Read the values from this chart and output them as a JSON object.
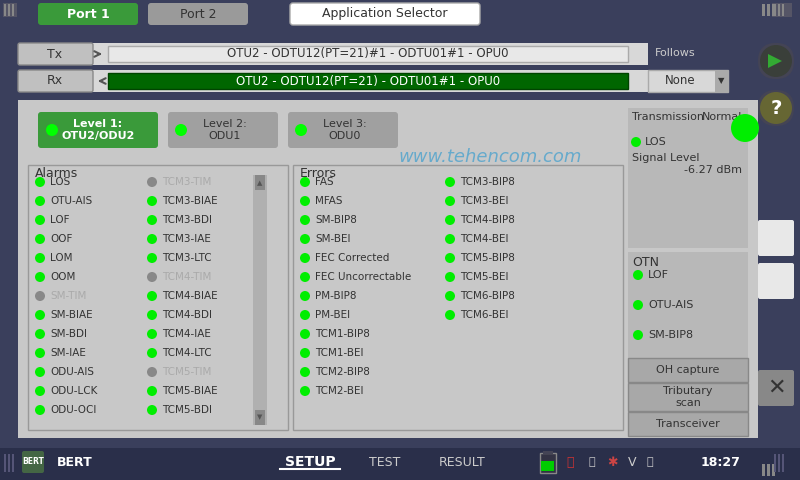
{
  "bg_color": "#3a3f5c",
  "panel_bg": "#c8c8c8",
  "panel_bg2": "#b0b0b0",
  "dark_bg": "#2a2f4a",
  "title_bar_bg": "#3a3f5c",
  "green_btn": "#3a9a3a",
  "gray_btn": "#888888",
  "white_btn": "#e8e8e8",
  "port1_label": "Port 1",
  "port2_label": "Port 2",
  "app_selector": "Application Selector",
  "tx_label": "Tx",
  "rx_label": "Rx",
  "tx_text": "OTU2 - ODTU12(PT=21)#1 - ODTU01#1 - OPU0",
  "rx_text": "OTU2 - ODTU12(PT=21) - ODTU01#1 - OPU0",
  "follows_label": "Follows",
  "none_label": "None",
  "level1_label": "Level 1:\nOTU2/ODU2",
  "level2_label": "Level 2:\nODU1",
  "level3_label": "Level 3:\nODU0",
  "watermark": "www.tehencom.com",
  "alarms_title": "Alarms",
  "errors_title": "Errors",
  "alarms_col1": [
    "LOS",
    "OTU-AIS",
    "LOF",
    "OOF",
    "LOM",
    "OOM",
    "SM-TIM",
    "SM-BIAE",
    "SM-BDI",
    "SM-IAE",
    "ODU-AIS",
    "ODU-LCK",
    "ODU-OCI"
  ],
  "alarms_col1_green": [
    true,
    true,
    true,
    true,
    true,
    true,
    false,
    true,
    true,
    true,
    true,
    true,
    true
  ],
  "alarms_col2": [
    "TCM3-TIM",
    "TCM3-BIAE",
    "TCM3-BDI",
    "TCM3-IAE",
    "TCM3-LTC",
    "TCM4-TIM",
    "TCM4-BIAE",
    "TCM4-BDI",
    "TCM4-IAE",
    "TCM4-LTC",
    "TCM5-TIM",
    "TCM5-BIAE",
    "TCM5-BDI"
  ],
  "alarms_col2_green": [
    false,
    true,
    true,
    true,
    true,
    false,
    true,
    true,
    true,
    true,
    false,
    true,
    true
  ],
  "errors_col1": [
    "FAS",
    "MFAS",
    "SM-BIP8",
    "SM-BEI",
    "FEC Corrected",
    "FEC Uncorrectable",
    "PM-BIP8",
    "PM-BEI",
    "TCM1-BIP8",
    "TCM1-BEI",
    "TCM2-BIP8",
    "TCM2-BEI"
  ],
  "errors_col1_green": [
    true,
    true,
    true,
    true,
    true,
    true,
    true,
    true,
    true,
    true,
    true,
    true
  ],
  "errors_col2": [
    "TCM3-BIP8",
    "TCM3-BEI",
    "TCM4-BIP8",
    "TCM4-BEI",
    "TCM5-BIP8",
    "TCM5-BEI",
    "TCM6-BIP8",
    "TCM6-BEI"
  ],
  "errors_col2_green": [
    true,
    true,
    true,
    true,
    true,
    true,
    true,
    true
  ],
  "transmission_label": "Transmission",
  "normal_label": "Normal",
  "los_label": "LOS",
  "signal_level_label": "Signal Level",
  "signal_level_value": "-6.27 dBm",
  "otn_label": "OTN",
  "otn_items": [
    "LOF",
    "OTU-AIS",
    "SM-BIP8"
  ],
  "otn_green": [
    true,
    true,
    true
  ],
  "oh_capture": "OH capture",
  "tributary_scan": "Tributary\nscan",
  "transceiver": "Transceiver",
  "bottom_items": [
    "BERT",
    "SETUP",
    "TEST",
    "RESULT"
  ],
  "time_label": "18:27",
  "bottom_bg": "#2a2f4a"
}
